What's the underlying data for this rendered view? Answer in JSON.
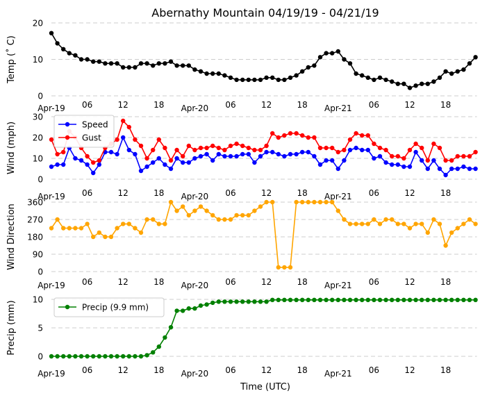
{
  "figure": {
    "title": "Abernathy Mountain 04/19/19 - 04/21/19",
    "xlabel": "Time (UTC)"
  },
  "chart_data": [
    {
      "type": "line",
      "id": "temp",
      "ylabel": "Temp (˚ C)",
      "ylim": [
        0,
        20
      ],
      "yticks": [
        0,
        10,
        20
      ],
      "grid": true,
      "legend": "",
      "series": [
        {
          "name": "Temp",
          "color": "#000000",
          "values": [
            17.2,
            14.4,
            12.8,
            11.7,
            11.1,
            10.0,
            10.0,
            9.4,
            9.4,
            8.9,
            8.9,
            8.9,
            7.8,
            7.8,
            7.8,
            8.9,
            8.9,
            8.3,
            8.9,
            8.9,
            9.4,
            8.3,
            8.3,
            8.3,
            7.2,
            6.7,
            6.1,
            6.1,
            6.1,
            5.6,
            5.0,
            4.4,
            4.4,
            4.4,
            4.4,
            4.4,
            5.0,
            5.0,
            4.4,
            4.4,
            5.0,
            5.6,
            6.7,
            7.8,
            8.3,
            10.6,
            11.7,
            11.7,
            12.2,
            10.0,
            8.9,
            6.1,
            5.6,
            5.0,
            4.4,
            5.0,
            4.4,
            3.9,
            3.3,
            3.3,
            2.2,
            2.8,
            3.3,
            3.3,
            3.9,
            5.0,
            6.7,
            6.1,
            6.7,
            7.2,
            8.9,
            10.6
          ]
        }
      ]
    },
    {
      "type": "line",
      "id": "wind",
      "ylabel": "Wind (mph)",
      "ylim": [
        0,
        30
      ],
      "yticks": [
        0,
        10,
        20,
        30
      ],
      "grid": true,
      "legend": "top-left",
      "series": [
        {
          "name": "Speed",
          "color": "#0000ff",
          "values": [
            6,
            7,
            7,
            15,
            10,
            9,
            7,
            3,
            7,
            13,
            13,
            12,
            20,
            14,
            12,
            4,
            6,
            8,
            10,
            7,
            5,
            10,
            8,
            8,
            10,
            11,
            12,
            9,
            12,
            11,
            11,
            11,
            12,
            12,
            8,
            11,
            13,
            13,
            12,
            11,
            12,
            12,
            13,
            13,
            11,
            7,
            9,
            9,
            5,
            9,
            14,
            15,
            14,
            14,
            10,
            11,
            8,
            7,
            7,
            6,
            6,
            13,
            9,
            5,
            9,
            5,
            2,
            5,
            5,
            6,
            5,
            5
          ]
        },
        {
          "name": "Gust",
          "color": "#ff0000",
          "values": [
            19,
            12,
            13,
            23,
            20,
            15,
            11,
            8,
            9,
            15,
            17,
            19,
            28,
            25,
            19,
            16,
            10,
            14,
            19,
            15,
            9,
            14,
            11,
            16,
            14,
            15,
            15,
            16,
            15,
            14,
            16,
            17,
            16,
            15,
            14,
            14,
            16,
            22,
            20,
            21,
            22,
            22,
            21,
            20,
            20,
            15,
            15,
            15,
            13,
            14,
            19,
            22,
            21,
            21,
            17,
            15,
            14,
            11,
            11,
            10,
            14,
            17,
            15,
            9,
            17,
            15,
            9,
            9,
            11,
            11,
            11,
            13
          ]
        }
      ]
    },
    {
      "type": "line",
      "id": "direction",
      "ylabel": "Wind Direction",
      "ylim": [
        0,
        360
      ],
      "yticks": [
        0,
        90,
        180,
        270,
        360
      ],
      "grid": true,
      "legend": "",
      "series": [
        {
          "name": "Direction",
          "color": "#ffa500",
          "values": [
            225,
            270,
            225,
            225,
            225,
            225,
            247,
            180,
            202,
            180,
            180,
            225,
            247,
            247,
            225,
            202,
            270,
            270,
            247,
            247,
            360,
            315,
            337,
            292,
            315,
            337,
            315,
            292,
            270,
            270,
            270,
            292,
            292,
            292,
            315,
            337,
            360,
            360,
            22,
            22,
            22,
            360,
            360,
            360,
            360,
            360,
            360,
            360,
            315,
            270,
            247,
            247,
            247,
            247,
            270,
            247,
            270,
            270,
            247,
            247,
            225,
            247,
            247,
            202,
            270,
            247,
            135,
            202,
            225,
            247,
            270,
            247
          ]
        }
      ]
    },
    {
      "type": "line",
      "id": "precip",
      "ylabel": "Precip (mm)",
      "ylim": [
        0,
        10
      ],
      "yticks": [
        0,
        5,
        10
      ],
      "grid": true,
      "legend": "top-left",
      "series": [
        {
          "name": "Precip (9.9 mm)",
          "color": "#008000",
          "values": [
            0,
            0,
            0,
            0,
            0,
            0,
            0,
            0,
            0,
            0,
            0,
            0,
            0,
            0,
            0,
            0,
            0.2,
            0.7,
            1.7,
            3.3,
            5.1,
            8.0,
            8.0,
            8.4,
            8.4,
            8.9,
            9.1,
            9.4,
            9.6,
            9.6,
            9.6,
            9.6,
            9.6,
            9.6,
            9.6,
            9.6,
            9.6,
            9.9,
            9.9,
            9.9,
            9.9,
            9.9,
            9.9,
            9.9,
            9.9,
            9.9,
            9.9,
            9.9,
            9.9,
            9.9,
            9.9,
            9.9,
            9.9,
            9.9,
            9.9,
            9.9,
            9.9,
            9.9,
            9.9,
            9.9,
            9.9,
            9.9,
            9.9,
            9.9,
            9.9,
            9.9,
            9.9,
            9.9,
            9.9,
            9.9,
            9.9,
            9.9
          ]
        }
      ]
    }
  ],
  "time_axis": {
    "x_start_hour": 0,
    "x_step_hours": 1,
    "tick_hours": [
      0,
      6,
      12,
      18,
      24,
      30,
      36,
      42,
      48,
      54,
      60,
      66
    ],
    "tick_labels": [
      "Apr-19",
      "06",
      "12",
      "18",
      "Apr-20",
      "06",
      "12",
      "18",
      "Apr-21",
      "06",
      "12",
      "18"
    ]
  }
}
